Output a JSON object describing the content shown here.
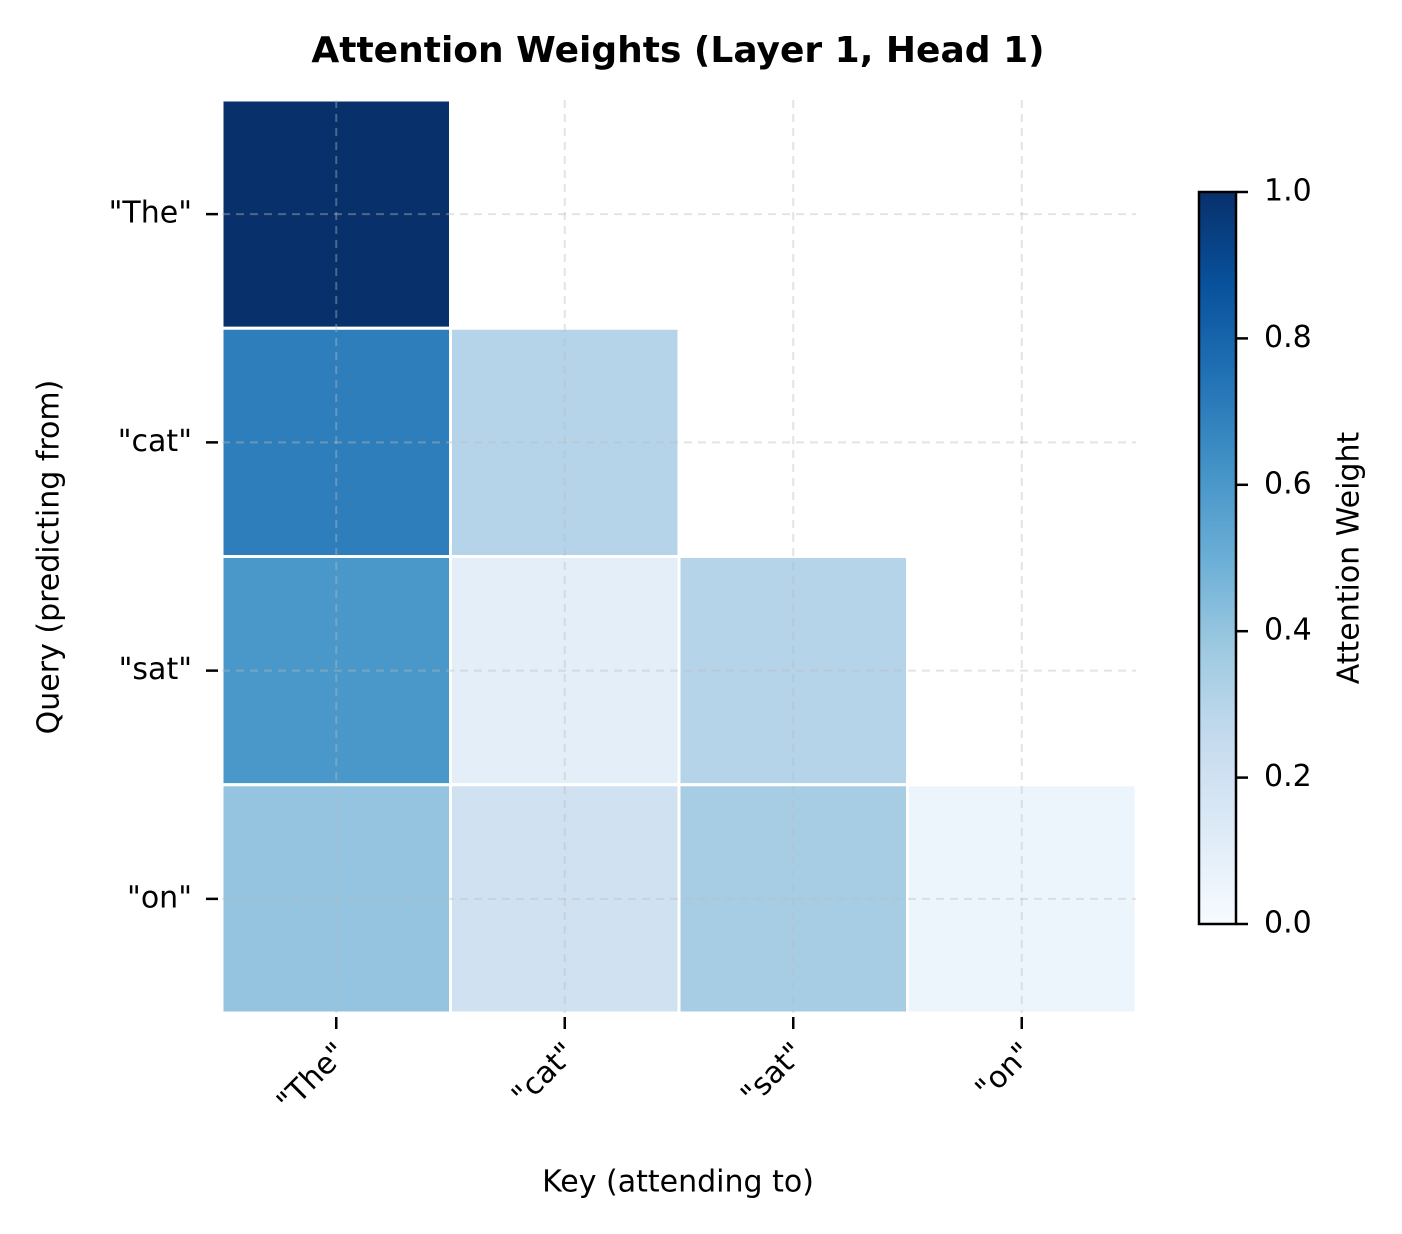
{
  "chart_data": {
    "type": "heatmap",
    "title": "Attention Weights (Layer 1, Head 1)",
    "x_label": "Key (attending to)",
    "y_label": "Query (predicting from)",
    "x_categories": [
      "\"The\"",
      "\"cat\"",
      "\"sat\"",
      "\"on\""
    ],
    "y_categories": [
      "\"The\"",
      "\"cat\"",
      "\"sat\"",
      "\"on\""
    ],
    "values": [
      [
        1.0,
        null,
        null,
        null
      ],
      [
        0.7,
        0.3,
        null,
        null
      ],
      [
        0.6,
        0.1,
        0.3,
        null
      ],
      [
        0.4,
        0.2,
        0.35,
        0.05
      ]
    ],
    "colormap": "Blues",
    "grid": true,
    "colorbar": {
      "label": "Attention Weight",
      "clim": [
        0,
        1
      ],
      "ticks": [
        {
          "value": 0,
          "label": "0.0"
        },
        0.2,
        0.4,
        0.6,
        0.8,
        {
          "value": 1,
          "label": "1.0"
        }
      ]
    }
  }
}
